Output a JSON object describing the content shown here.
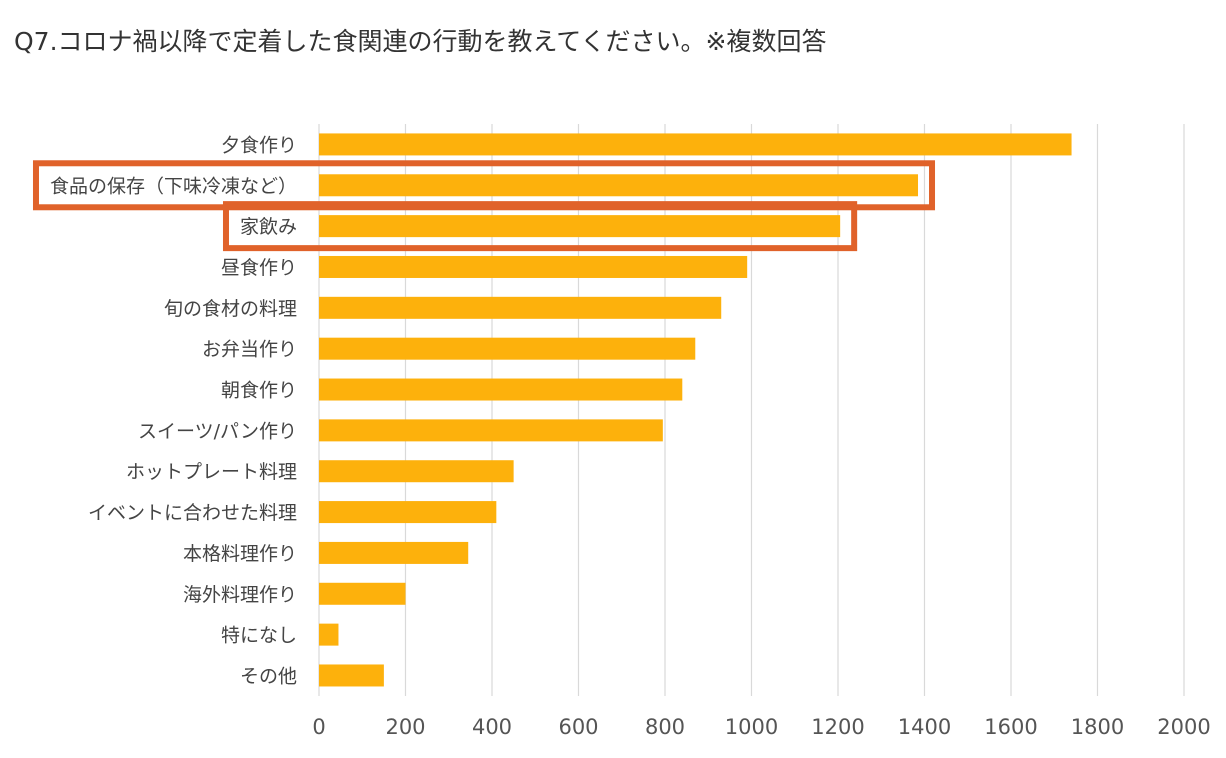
{
  "title": "Q7.コロナ禍以降で定着した食関連の行動を教えてください。※複数回答",
  "colors": {
    "bar": "#FDB10C",
    "grid": "#D9D9D9",
    "highlight": "#E0622A"
  },
  "chart_data": {
    "type": "bar",
    "orientation": "horizontal",
    "title": "Q7.コロナ禍以降で定着した食関連の行動を教えてください。※複数回答",
    "xlabel": "",
    "ylabel": "",
    "xlim": [
      0,
      2000
    ],
    "xticks": [
      0,
      200,
      400,
      600,
      800,
      1000,
      1200,
      1400,
      1600,
      1800,
      2000
    ],
    "grid": "vertical",
    "legend": "none",
    "categories": [
      "夕食作り",
      "食品の保存（下味冷凍など）",
      "家飲み",
      "昼食作り",
      "旬の食材の料理",
      "お弁当作り",
      "朝食作り",
      "スイーツ/パン作り",
      "ホットプレート料理",
      "イベントに合わせた料理",
      "本格料理作り",
      "海外料理作り",
      "特になし",
      "その他"
    ],
    "values": [
      1740,
      1385,
      1205,
      990,
      930,
      870,
      840,
      795,
      450,
      410,
      345,
      200,
      45,
      150
    ],
    "highlighted": [
      "食品の保存（下味冷凍など）",
      "家飲み"
    ]
  }
}
